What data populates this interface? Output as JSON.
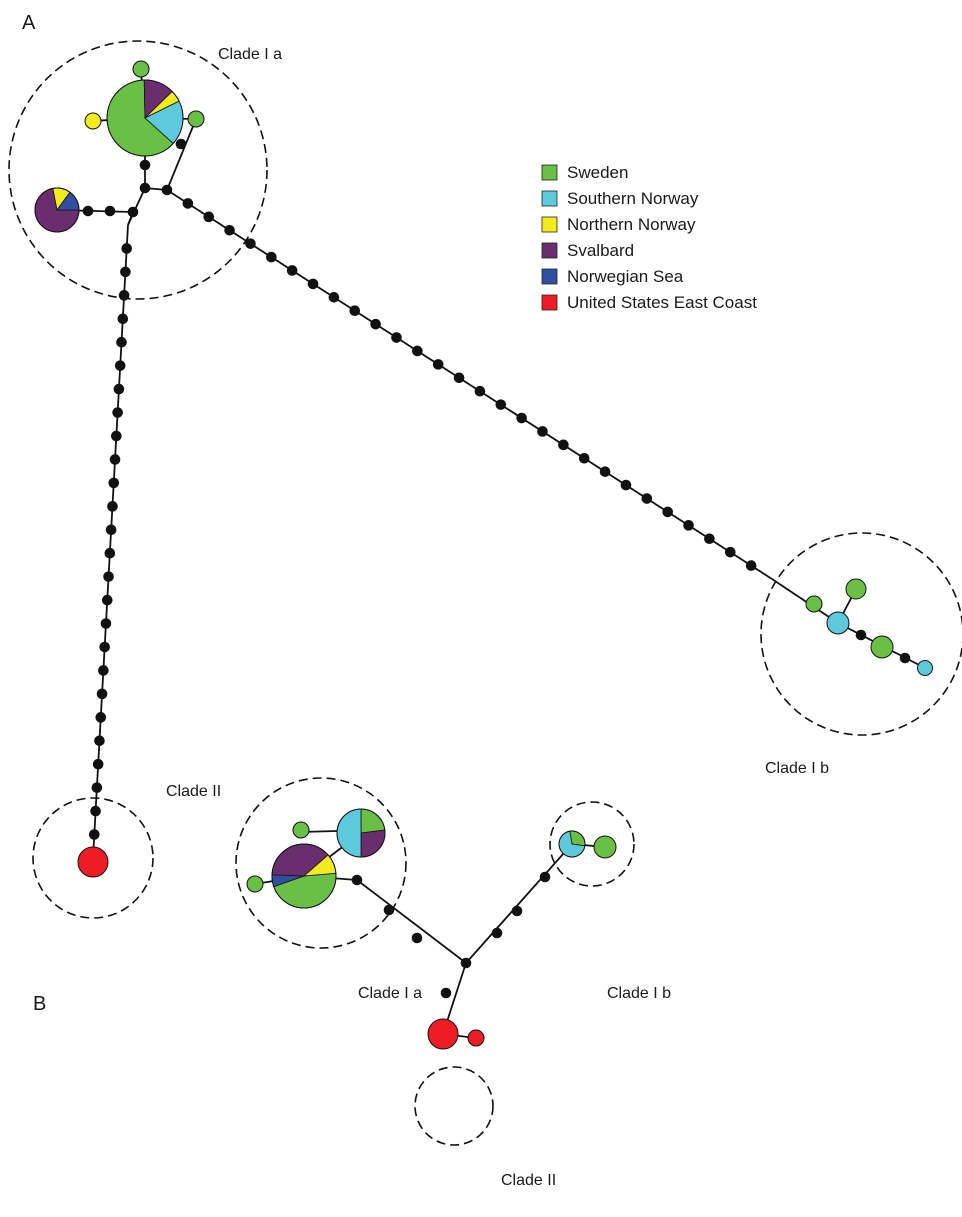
{
  "colors": {
    "sweden": "#6abf45",
    "southern_norway": "#5ccadb",
    "northern_norway": "#f2ec1c",
    "svalbard": "#6a2d6e",
    "norwegian_sea": "#2f4fa0",
    "us_east_coast": "#ee1c25",
    "node": "#111111",
    "edge": "#111111"
  },
  "legend": [
    {
      "label": "Sweden",
      "color_key": "sweden"
    },
    {
      "label": "Southern Norway",
      "color_key": "southern_norway"
    },
    {
      "label": "Northern Norway",
      "color_key": "northern_norway"
    },
    {
      "label": "Svalbard",
      "color_key": "svalbard"
    },
    {
      "label": "Norwegian Sea",
      "color_key": "norwegian_sea"
    },
    {
      "label": "United States East Coast",
      "color_key": "us_east_coast"
    }
  ],
  "panel_a": {
    "letter": "A",
    "clades": {
      "clade_ia": "Clade I a",
      "clade_ib": "Clade I b",
      "clade_ii": "Clade II"
    }
  },
  "panel_b": {
    "letter": "B",
    "clades": {
      "clade_ia": "Clade I a",
      "clade_ib": "Clade I b",
      "clade_ii": "Clade II"
    }
  }
}
